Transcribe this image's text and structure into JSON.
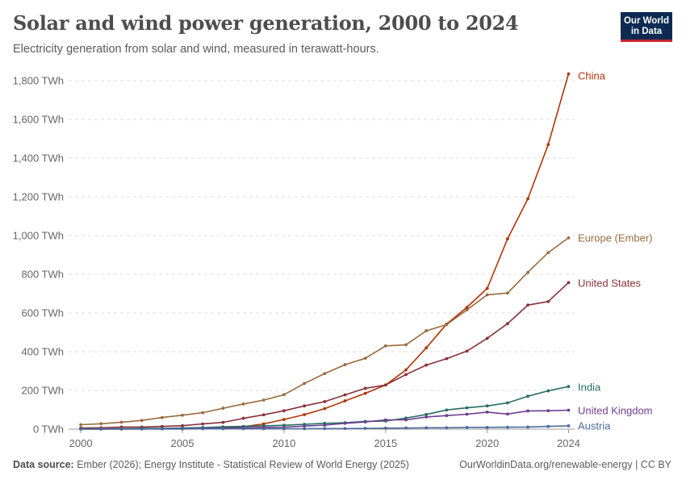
{
  "header": {
    "title": "Solar and wind power generation, 2000 to 2024",
    "subtitle": "Electricity generation from solar and wind, measured in terawatt-hours."
  },
  "logo": {
    "line1": "Our World",
    "line2": "in Data"
  },
  "footer": {
    "source_label": "Data source:",
    "source_text": "Ember (2026); Energy Institute - Statistical Review of World Energy (2025)",
    "link_text": "OurWorldinData.org/renewable-energy | CC BY"
  },
  "chart_data": {
    "type": "line",
    "title": "Solar and wind power generation, 2000 to 2024",
    "subtitle": "Electricity generation from solar and wind, measured in terawatt-hours.",
    "x": [
      2000,
      2001,
      2002,
      2003,
      2004,
      2005,
      2006,
      2007,
      2008,
      2009,
      2010,
      2011,
      2012,
      2013,
      2014,
      2015,
      2016,
      2017,
      2018,
      2019,
      2020,
      2021,
      2022,
      2023,
      2024
    ],
    "xlim": [
      1999.4,
      2024.3
    ],
    "ylim": [
      0,
      1800
    ],
    "x_ticks": [
      2000,
      2005,
      2010,
      2015,
      2020,
      2024
    ],
    "y_ticks": [
      0,
      200,
      400,
      600,
      800,
      1000,
      1200,
      1400,
      1600,
      1800
    ],
    "y_tick_labels": [
      "0 TWh",
      "200 TWh",
      "400 TWh",
      "600 TWh",
      "800 TWh",
      "1,000 TWh",
      "1,200 TWh",
      "1,400 TWh",
      "1,600 TWh",
      "1,800 TWh"
    ],
    "grid": true,
    "legend": "end-labels",
    "series": [
      {
        "name": "China",
        "color": "#b13507",
        "values": [
          1,
          1,
          2,
          2,
          2,
          2,
          4,
          6,
          13,
          27,
          50,
          75,
          106,
          146,
          185,
          228,
          306,
          420,
          543,
          629,
          727,
          983,
          1190,
          1470,
          1835
        ]
      },
      {
        "name": "Europe (Ember)",
        "color": "#9a6b3e",
        "values": [
          23,
          28,
          36,
          45,
          60,
          72,
          85,
          108,
          130,
          150,
          178,
          236,
          287,
          333,
          366,
          430,
          436,
          508,
          540,
          616,
          694,
          703,
          810,
          912,
          988
        ]
      },
      {
        "name": "United States",
        "color": "#883039",
        "values": [
          6,
          7,
          11,
          11,
          14,
          18,
          27,
          35,
          56,
          74,
          95,
          120,
          142,
          177,
          211,
          228,
          282,
          331,
          364,
          403,
          469,
          545,
          641,
          659,
          757
        ]
      },
      {
        "name": "India",
        "color": "#286e61",
        "values": [
          2,
          2,
          2,
          4,
          4,
          6,
          8,
          12,
          14,
          17,
          20,
          25,
          30,
          33,
          40,
          42,
          57,
          76,
          99,
          110,
          120,
          136,
          170,
          198,
          220
        ]
      },
      {
        "name": "United Kingdom",
        "color": "#6d3e91",
        "values": [
          1,
          1,
          1,
          1,
          2,
          3,
          4,
          5,
          7,
          9,
          10,
          16,
          21,
          30,
          37,
          48,
          48,
          63,
          70,
          77,
          88,
          78,
          94,
          95,
          98
        ]
      },
      {
        "name": "Austria",
        "color": "#4c6a9c",
        "values": [
          0,
          0,
          0,
          1,
          1,
          1,
          2,
          2,
          2,
          2,
          2,
          2,
          3,
          3,
          4,
          5,
          6,
          7,
          7,
          9,
          9,
          10,
          11,
          14,
          17
        ]
      }
    ]
  }
}
